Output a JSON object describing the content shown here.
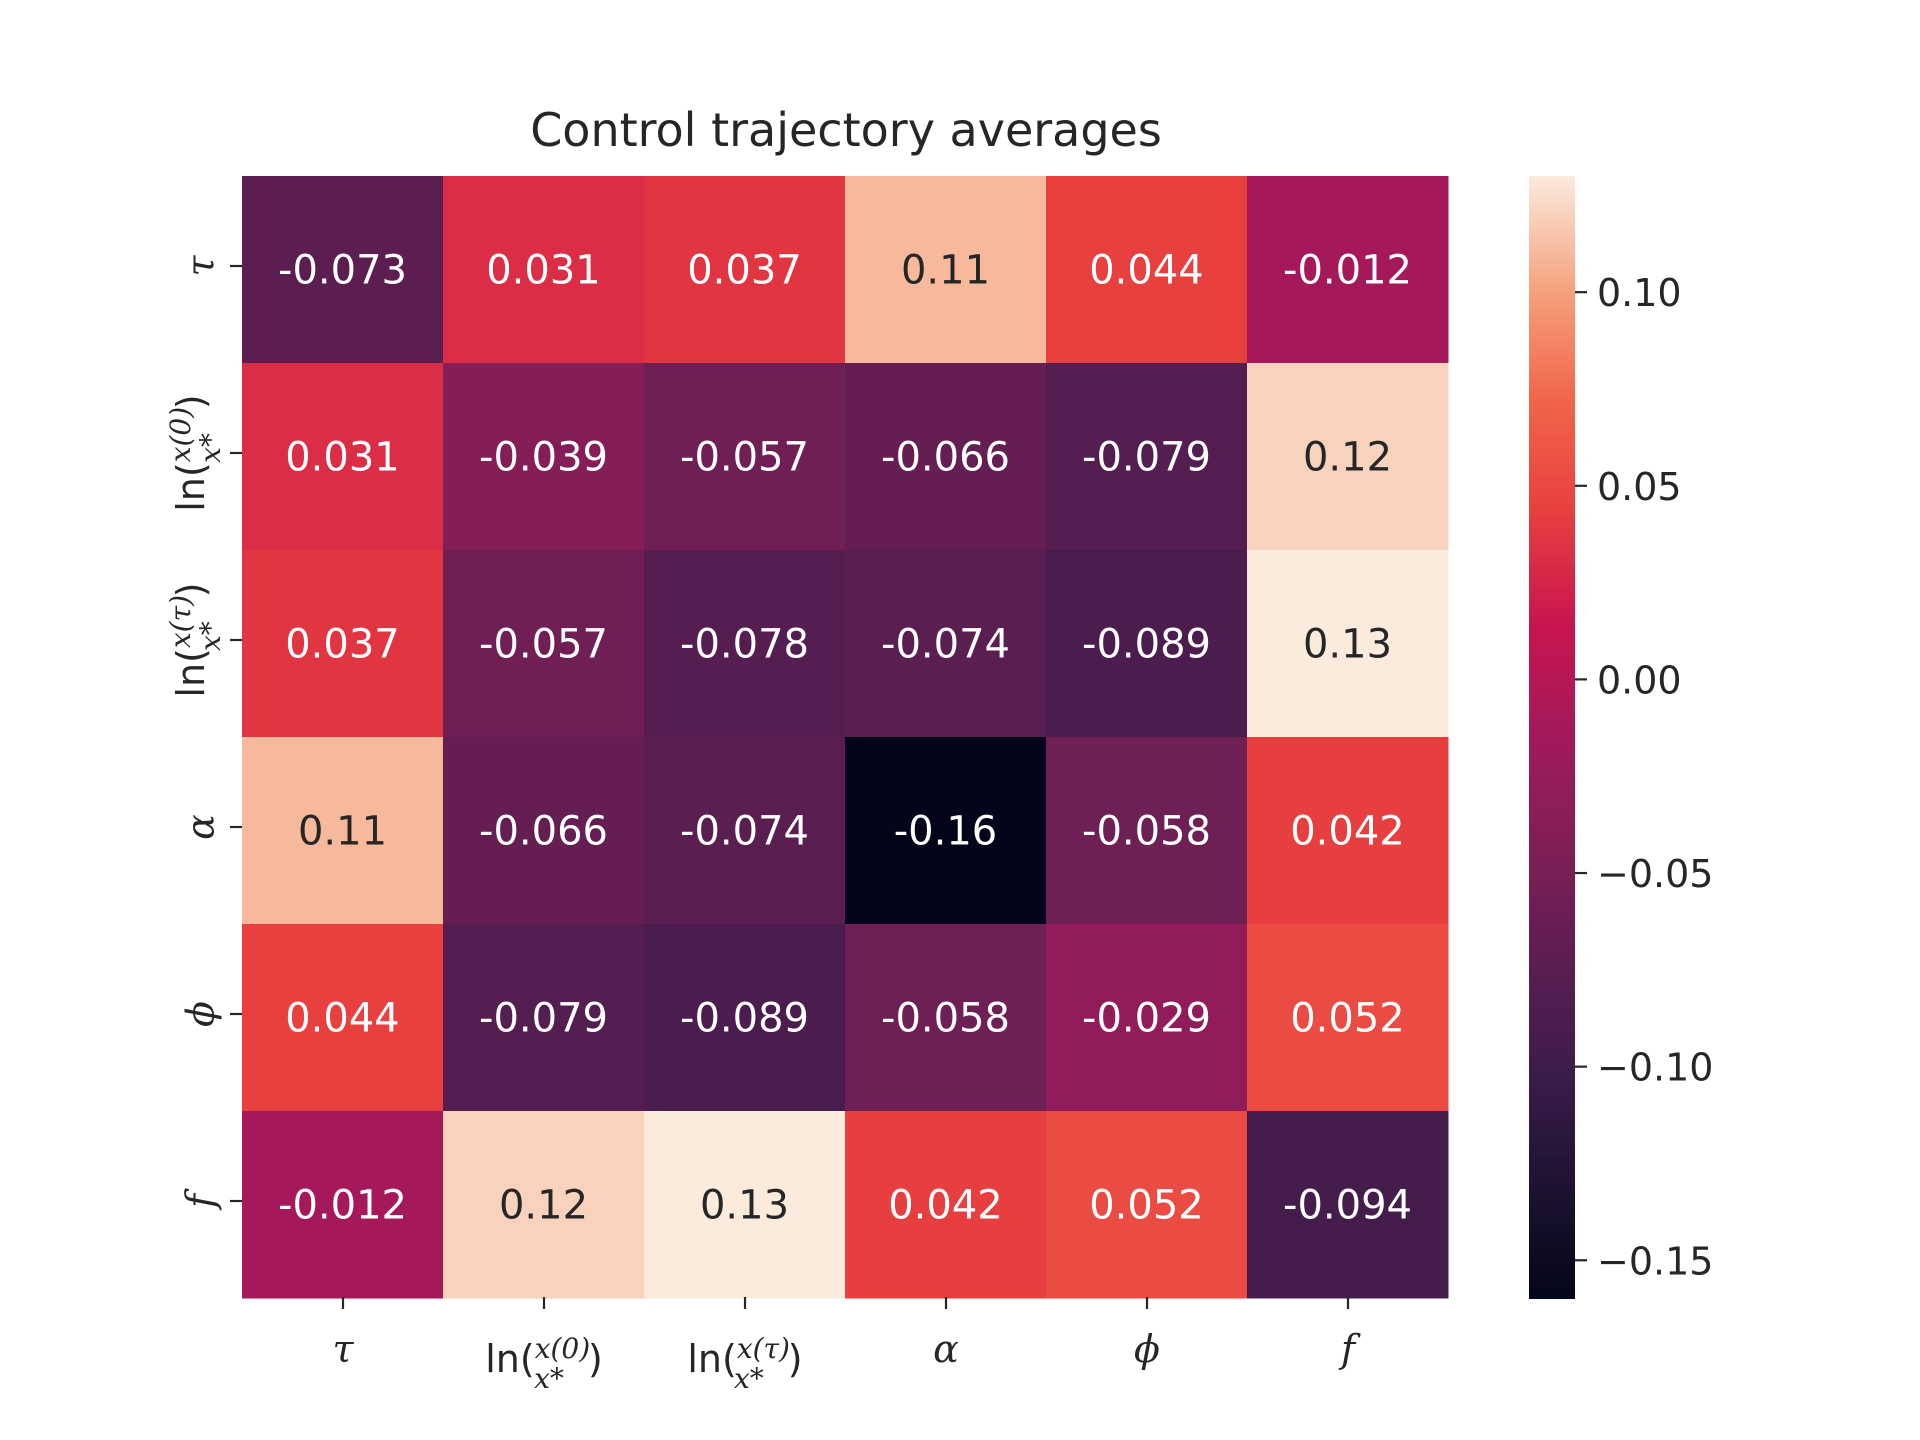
{
  "chart_data": {
    "type": "heatmap",
    "title": "Control trajectory averages",
    "row_labels": [
      "τ",
      "ln(x(0)/x*)",
      "ln(x(τ)/x*)",
      "α",
      "ϕ",
      "f"
    ],
    "col_labels": [
      "τ",
      "ln(x(0)/x*)",
      "ln(x(τ)/x*)",
      "α",
      "ϕ",
      "f"
    ],
    "values": [
      [
        -0.073,
        0.031,
        0.037,
        0.11,
        0.044,
        -0.012
      ],
      [
        0.031,
        -0.039,
        -0.057,
        -0.066,
        -0.079,
        0.12
      ],
      [
        0.037,
        -0.057,
        -0.078,
        -0.074,
        -0.089,
        0.13
      ],
      [
        0.11,
        -0.066,
        -0.074,
        -0.16,
        -0.058,
        0.042
      ],
      [
        0.044,
        -0.079,
        -0.089,
        -0.058,
        -0.029,
        0.052
      ],
      [
        -0.012,
        0.12,
        0.13,
        0.042,
        0.052,
        -0.094
      ]
    ],
    "value_labels": [
      [
        "-0.073",
        "0.031",
        "0.037",
        "0.11",
        "0.044",
        "-0.012"
      ],
      [
        "0.031",
        "-0.039",
        "-0.057",
        "-0.066",
        "-0.079",
        "0.12"
      ],
      [
        "0.037",
        "-0.057",
        "-0.078",
        "-0.074",
        "-0.089",
        "0.13"
      ],
      [
        "0.11",
        "-0.066",
        "-0.074",
        "-0.16",
        "-0.058",
        "0.042"
      ],
      [
        "0.044",
        "-0.079",
        "-0.089",
        "-0.058",
        "-0.029",
        "0.052"
      ],
      [
        "-0.012",
        "0.12",
        "0.13",
        "0.042",
        "0.052",
        "-0.094"
      ]
    ],
    "colorbar": {
      "colormap": "rocket",
      "vmin": -0.16,
      "vmax": 0.13,
      "ticks": [
        0.1,
        0.05,
        0.0,
        -0.05,
        -0.1,
        -0.15
      ],
      "tick_labels": [
        "0.10",
        "0.05",
        "0.00",
        "−0.05",
        "−0.10",
        "−0.15"
      ]
    },
    "grid": false
  }
}
